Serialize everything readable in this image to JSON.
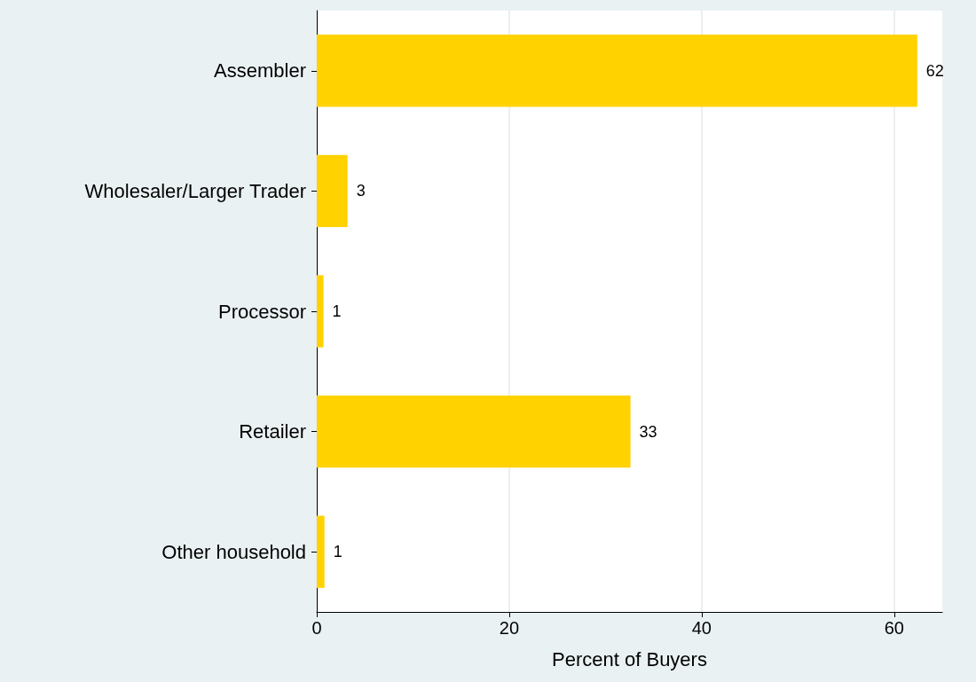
{
  "chart_data": {
    "type": "bar",
    "orientation": "horizontal",
    "categories": [
      "Assembler",
      "Wholesaler/Larger Trader",
      "Processor",
      "Retailer",
      "Other household"
    ],
    "values": [
      62.4,
      3.2,
      0.7,
      32.6,
      0.8
    ],
    "value_labels": [
      "62",
      "3",
      "1",
      "33",
      "1"
    ],
    "color": "#ffd200",
    "xlabel": "Percent of Buyers",
    "xlim": [
      0,
      65
    ],
    "xticks": [
      0,
      20,
      40,
      60
    ],
    "grid": "x"
  }
}
